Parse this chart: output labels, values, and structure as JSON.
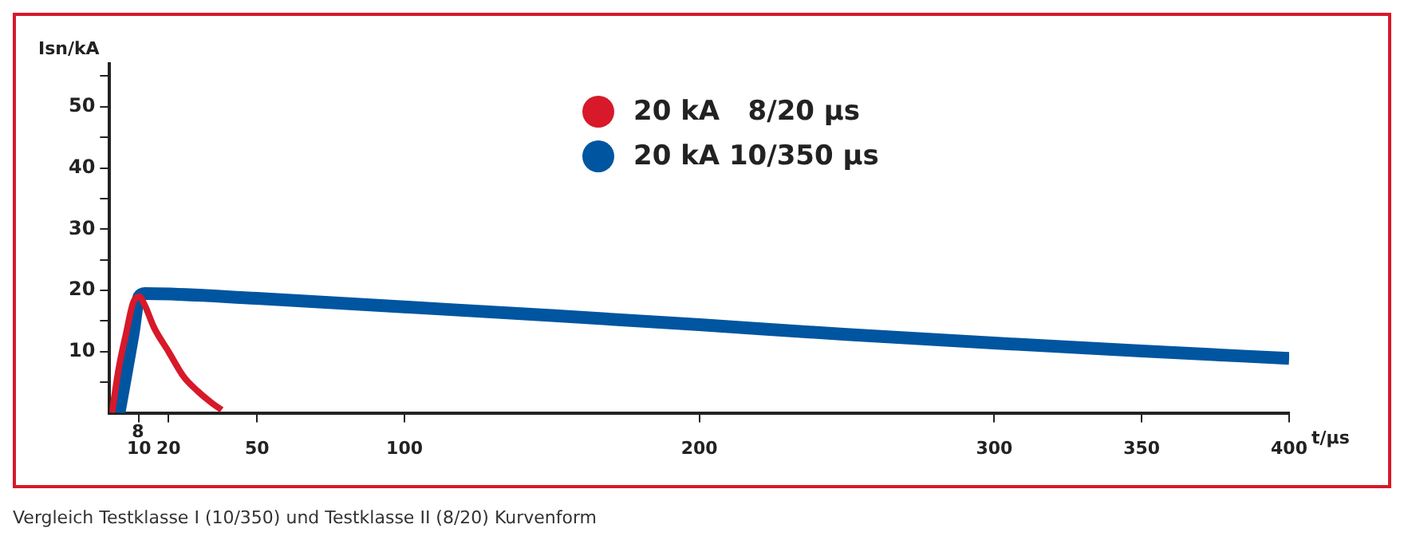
{
  "chart_data": {
    "type": "line",
    "xlabel": "t/µs",
    "ylabel": "Isn/kA",
    "legend": "top",
    "annotations": [
      "Vergleich Testklasse I (10/350) und Testklasse II (8/20) Kurvenform",
      {
        "text": "8",
        "x": 8,
        "y": 0
      }
    ],
    "xlim": [
      0,
      400
    ],
    "xticks": [
      10,
      20,
      50,
      100,
      200,
      300,
      350,
      400
    ],
    "ylim": [
      0,
      57
    ],
    "yticks": [
      {
        "value": 5,
        "label": null
      },
      10,
      {
        "value": 15,
        "label": null
      },
      20,
      {
        "value": 25,
        "label": null
      },
      30,
      {
        "value": 35,
        "label": null
      },
      40,
      {
        "value": 45,
        "label": null
      },
      50,
      {
        "value": 55,
        "label": null
      }
    ],
    "series": [
      {
        "name": "20 kA   8/20 µs",
        "color": "#d7192a",
        "x": [
          0.8,
          3,
          5.6,
          8,
          10,
          12,
          15,
          20,
          25,
          30,
          35,
          38
        ],
        "values": [
          0,
          7,
          13,
          18,
          19,
          17.5,
          14,
          10,
          6,
          3.5,
          1.5,
          0.5
        ]
      },
      {
        "name": "20 kA 10/350 µs",
        "color": "#0055a0",
        "x": [
          3.2,
          8,
          10,
          12,
          50,
          100,
          150,
          200,
          250,
          300,
          350,
          400
        ],
        "values": [
          0,
          13,
          19,
          19.5,
          18.7,
          17.3,
          15.9,
          14.4,
          12.8,
          11.4,
          10.1,
          8.9
        ]
      }
    ]
  }
}
